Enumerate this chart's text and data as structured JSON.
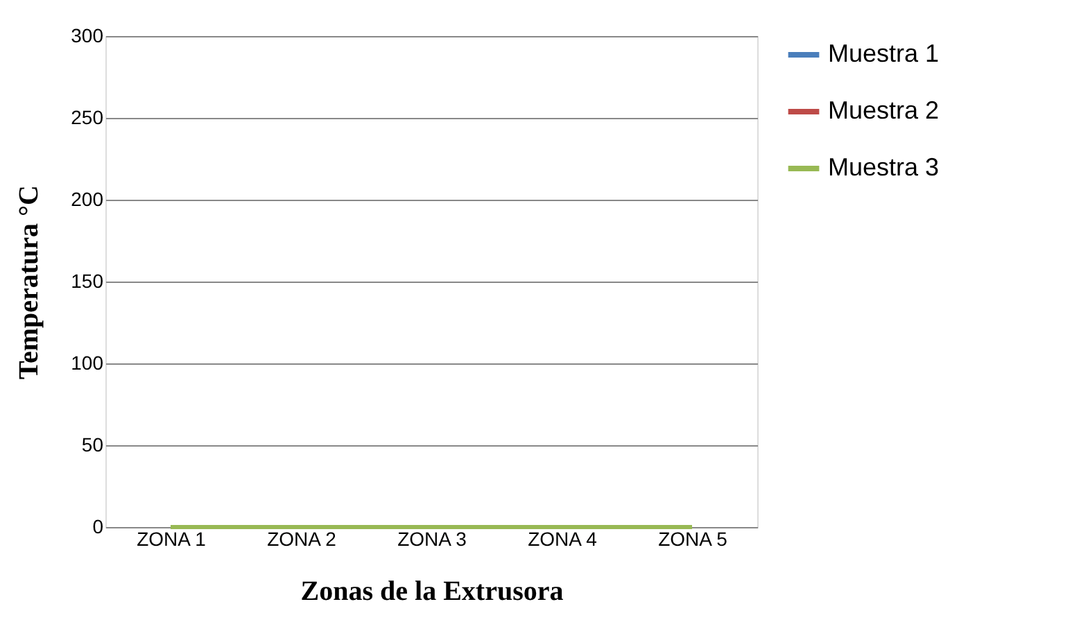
{
  "chart_data": {
    "type": "line",
    "xlabel": "Zonas de la Extrusora",
    "ylabel": "Temperatura °C",
    "categories": [
      "ZONA 1",
      "ZONA 2",
      "ZONA 3",
      "ZONA 4",
      "ZONA 5"
    ],
    "series": [
      {
        "name": "Muestra 1",
        "color": "#4a7ebb",
        "values": [
          null,
          null,
          null,
          null,
          null
        ]
      },
      {
        "name": "Muestra 2",
        "color": "#be4b48",
        "values": [
          null,
          null,
          null,
          null,
          null
        ]
      },
      {
        "name": "Muestra 3",
        "color": "#98b954",
        "values": [
          0,
          0,
          0,
          0,
          0
        ]
      }
    ],
    "ylim": [
      0,
      300
    ],
    "yticks": [
      0,
      50,
      100,
      150,
      200,
      250,
      300
    ],
    "grid": "y",
    "legend": "right",
    "marker": "none",
    "line_style": "solid"
  }
}
